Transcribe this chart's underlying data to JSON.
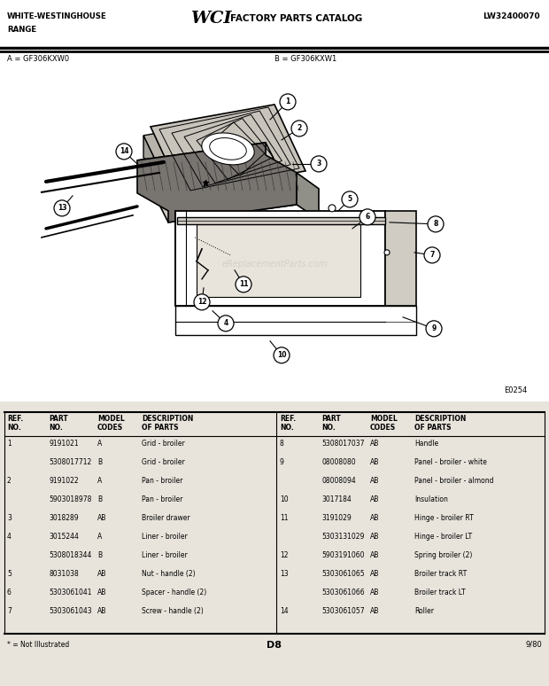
{
  "title_left1": "WHITE-WESTINGHOUSE",
  "title_left2": "RANGE",
  "title_center": "WCI FACTORY PARTS CATALOG",
  "title_right": "LW32400070",
  "model_a": "A = GF306KXW0",
  "model_b": "B = GF306KXW1",
  "diagram_code": "E0254",
  "page_label": "D8",
  "page_date": "9/80",
  "footnote": "* = Not Illustrated",
  "bg_color": "#e8e4dc",
  "white": "#ffffff",
  "black": "#000000",
  "gray_light": "#d8d4cc",
  "gray_mid": "#b0acA4",
  "gray_dark": "#787470",
  "parts_left": [
    [
      "1",
      "9191021",
      "A",
      "Grid - broiler"
    ],
    [
      "",
      "5308017712",
      "B",
      "Grid - broiler"
    ],
    [
      "2",
      "9191022",
      "A",
      "Pan - broiler"
    ],
    [
      "",
      "5903018978",
      "B",
      "Pan - broiler"
    ],
    [
      "3",
      "3018289",
      "AB",
      "Broiler drawer"
    ],
    [
      "4",
      "3015244",
      "A",
      "Liner - broiler"
    ],
    [
      "",
      "5308018344",
      "B",
      "Liner - broiler"
    ],
    [
      "5",
      "8031038",
      "AB",
      "Nut - handle (2)"
    ],
    [
      "6",
      "5303061041",
      "AB",
      "Spacer - handle (2)"
    ],
    [
      "7",
      "5303061043",
      "AB",
      "Screw - handle (2)"
    ]
  ],
  "parts_right": [
    [
      "8",
      "5308017037",
      "AB",
      "Handle"
    ],
    [
      "9",
      "08008080",
      "AB",
      "Panel - broiler - white"
    ],
    [
      "",
      "08008094",
      "AB",
      "Panel - broiler - almond"
    ],
    [
      "10",
      "3017184",
      "AB",
      "Insulation"
    ],
    [
      "11",
      "3191029",
      "AB",
      "Hinge - broiler RT"
    ],
    [
      "",
      "5303131029",
      "AB",
      "Hinge - broiler LT"
    ],
    [
      "12",
      "5903191060",
      "AB",
      "Spring broiler (2)"
    ],
    [
      "13",
      "5303061065",
      "AB",
      "Broiler track RT"
    ],
    [
      "",
      "5303061066",
      "AB",
      "Broiler track LT"
    ],
    [
      "14",
      "5303061057",
      "AB",
      "Roller"
    ]
  ]
}
